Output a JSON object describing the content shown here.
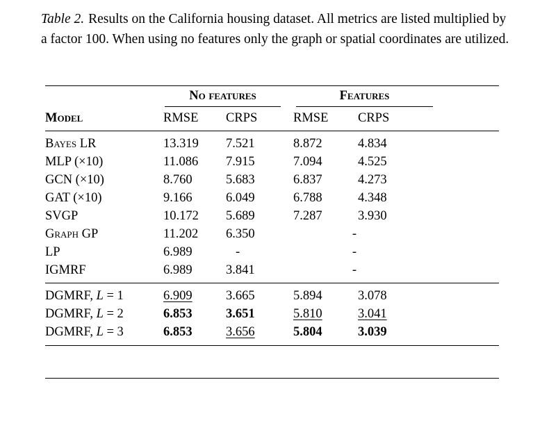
{
  "caption": {
    "label": "Table 2.",
    "text": "Results on the California housing dataset. All metrics are listed multiplied by a factor 100. When using no features only the graph or spatial coordinates are utilized."
  },
  "table": {
    "group_no_features": "No features",
    "group_features": "Features",
    "model_header": "Model",
    "rmse": "RMSE",
    "crps": "CRPS",
    "rows": [
      {
        "model": "Bayes LR",
        "v": [
          "13.319",
          "7.521",
          "8.872",
          "4.834"
        ]
      },
      {
        "model": "MLP (×10)",
        "v": [
          "11.086",
          "7.915",
          "7.094",
          "4.525"
        ]
      },
      {
        "model": "GCN (×10)",
        "v": [
          "8.760",
          "5.683",
          "6.837",
          "4.273"
        ]
      },
      {
        "model": "GAT (×10)",
        "v": [
          "9.166",
          "6.049",
          "6.788",
          "4.348"
        ]
      },
      {
        "model": "SVGP",
        "v": [
          "10.172",
          "5.689",
          "7.287",
          "3.930"
        ]
      },
      {
        "model": "Graph GP",
        "v": [
          "11.202",
          "6.350",
          "-"
        ]
      },
      {
        "model": "LP",
        "v": [
          "6.989",
          "-",
          "-"
        ]
      },
      {
        "model": "IGMRF",
        "v": [
          "6.989",
          "3.841",
          "-"
        ]
      },
      {
        "model_pre": "DGMRF, ",
        "model_var": "L",
        "model_post": " = 1",
        "v": [
          "6.909",
          "3.665",
          "5.894",
          "3.078"
        ]
      },
      {
        "model_pre": "DGMRF, ",
        "model_var": "L",
        "model_post": " = 2",
        "v": [
          "6.853",
          "3.651",
          "5.810",
          "3.041"
        ]
      },
      {
        "model_pre": "DGMRF, ",
        "model_var": "L",
        "model_post": " = 3",
        "v": [
          "6.853",
          "3.656",
          "5.804",
          "3.039"
        ]
      }
    ]
  }
}
